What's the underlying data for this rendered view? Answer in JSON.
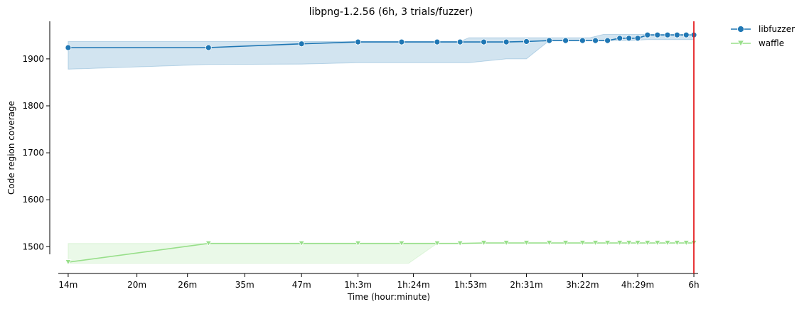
{
  "chart_data": {
    "type": "line",
    "title": "libpng-1.2.56 (6h, 3 trials/fuzzer)",
    "xlabel": "Time (hour:minute)",
    "ylabel": "Code region coverage",
    "x_scale": "log",
    "x_unit": "minutes",
    "x_ticks": [
      {
        "value": 14,
        "label": "14m"
      },
      {
        "value": 20,
        "label": "20m"
      },
      {
        "value": 26,
        "label": "26m"
      },
      {
        "value": 35,
        "label": "35m"
      },
      {
        "value": 47,
        "label": "47m"
      },
      {
        "value": 63,
        "label": "1h:3m"
      },
      {
        "value": 84,
        "label": "1h:24m"
      },
      {
        "value": 113,
        "label": "1h:53m"
      },
      {
        "value": 151,
        "label": "2h:31m"
      },
      {
        "value": 202,
        "label": "3h:22m"
      },
      {
        "value": 269,
        "label": "4h:29m"
      },
      {
        "value": 360,
        "label": "6h"
      }
    ],
    "y_ticks": [
      1500,
      1600,
      1700,
      1800,
      1900
    ],
    "xlim": [
      13.3,
      368
    ],
    "ylim": [
      1443,
      1980
    ],
    "legend_position": "outside-top-right",
    "grid": false,
    "vline": {
      "x": 360,
      "color": "#e41a1c"
    },
    "series": [
      {
        "name": "libfuzzer",
        "color": "#1f77b4",
        "band_color": "#1f77b4",
        "marker": "circle",
        "points": [
          {
            "x": 14,
            "y": 1924
          },
          {
            "x": 29,
            "y": 1924
          },
          {
            "x": 47,
            "y": 1932
          },
          {
            "x": 63,
            "y": 1936
          },
          {
            "x": 79,
            "y": 1936
          },
          {
            "x": 95,
            "y": 1936
          },
          {
            "x": 107,
            "y": 1936
          },
          {
            "x": 121,
            "y": 1936
          },
          {
            "x": 136,
            "y": 1936
          },
          {
            "x": 151,
            "y": 1937
          },
          {
            "x": 170,
            "y": 1939
          },
          {
            "x": 185,
            "y": 1939
          },
          {
            "x": 202,
            "y": 1939
          },
          {
            "x": 216,
            "y": 1939
          },
          {
            "x": 230,
            "y": 1939
          },
          {
            "x": 245,
            "y": 1944
          },
          {
            "x": 257,
            "y": 1944
          },
          {
            "x": 269,
            "y": 1944
          },
          {
            "x": 283,
            "y": 1951
          },
          {
            "x": 298,
            "y": 1951
          },
          {
            "x": 314,
            "y": 1951
          },
          {
            "x": 330,
            "y": 1951
          },
          {
            "x": 346,
            "y": 1951
          },
          {
            "x": 360,
            "y": 1951
          }
        ],
        "band": [
          {
            "x": 14,
            "lo": 1878,
            "hi": 1937
          },
          {
            "x": 29,
            "lo": 1888,
            "hi": 1937
          },
          {
            "x": 47,
            "lo": 1889,
            "hi": 1937
          },
          {
            "x": 63,
            "lo": 1892,
            "hi": 1937
          },
          {
            "x": 107,
            "lo": 1892,
            "hi": 1937
          },
          {
            "x": 112,
            "lo": 1892,
            "hi": 1945
          },
          {
            "x": 136,
            "lo": 1900,
            "hi": 1945
          },
          {
            "x": 151,
            "lo": 1900,
            "hi": 1945
          },
          {
            "x": 170,
            "lo": 1939,
            "hi": 1945
          },
          {
            "x": 210,
            "lo": 1939,
            "hi": 1945
          },
          {
            "x": 225,
            "lo": 1939,
            "hi": 1952
          },
          {
            "x": 260,
            "lo": 1939,
            "hi": 1952
          },
          {
            "x": 283,
            "lo": 1941,
            "hi": 1952
          },
          {
            "x": 360,
            "lo": 1941,
            "hi": 1952
          }
        ]
      },
      {
        "name": "waffle",
        "color": "#98df8a",
        "band_color": "#98df8a",
        "marker": "triangle-down",
        "points": [
          {
            "x": 14,
            "y": 1467
          },
          {
            "x": 29,
            "y": 1507
          },
          {
            "x": 47,
            "y": 1507
          },
          {
            "x": 63,
            "y": 1507
          },
          {
            "x": 79,
            "y": 1507
          },
          {
            "x": 95,
            "y": 1507
          },
          {
            "x": 107,
            "y": 1507
          },
          {
            "x": 121,
            "y": 1508
          },
          {
            "x": 136,
            "y": 1508
          },
          {
            "x": 151,
            "y": 1508
          },
          {
            "x": 170,
            "y": 1508
          },
          {
            "x": 185,
            "y": 1508
          },
          {
            "x": 202,
            "y": 1508
          },
          {
            "x": 216,
            "y": 1508
          },
          {
            "x": 230,
            "y": 1508
          },
          {
            "x": 245,
            "y": 1508
          },
          {
            "x": 257,
            "y": 1508
          },
          {
            "x": 269,
            "y": 1508
          },
          {
            "x": 283,
            "y": 1508
          },
          {
            "x": 298,
            "y": 1508
          },
          {
            "x": 314,
            "y": 1508
          },
          {
            "x": 330,
            "y": 1508
          },
          {
            "x": 346,
            "y": 1508
          },
          {
            "x": 360,
            "y": 1508
          }
        ],
        "band": [
          {
            "x": 14,
            "lo": 1465,
            "hi": 1507
          },
          {
            "x": 82,
            "lo": 1465,
            "hi": 1507
          },
          {
            "x": 95,
            "lo": 1507,
            "hi": 1507
          },
          {
            "x": 360,
            "lo": 1507,
            "hi": 1507
          }
        ]
      }
    ]
  }
}
